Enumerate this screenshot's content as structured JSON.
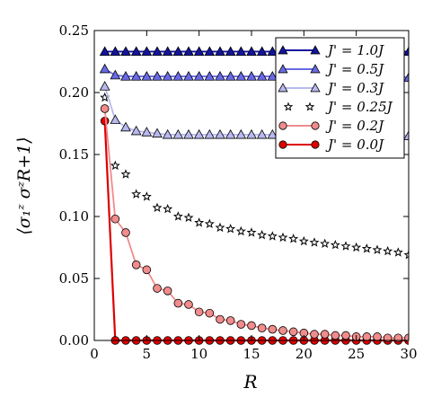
{
  "chart_data": {
    "type": "line",
    "title": "",
    "xlabel": "R",
    "ylabel": "⟨σ₁ᶻ σᶻR+1⟩",
    "xlim": [
      0,
      30
    ],
    "ylim": [
      0,
      0.25
    ],
    "x_ticks": [
      "0",
      "5",
      "10",
      "15",
      "20",
      "25",
      "30"
    ],
    "y_ticks": [
      "0.00",
      "0.05",
      "0.10",
      "0.15",
      "0.20",
      "0.25"
    ],
    "grid": false,
    "legend_position": "top-right",
    "series": [
      {
        "name": "J' = 1.0J",
        "color": "#1414a0",
        "marker": "triangle",
        "x": [
          1,
          2,
          3,
          4,
          5,
          6,
          7,
          8,
          9,
          10,
          11,
          12,
          13,
          14,
          15,
          16,
          17,
          18,
          19,
          20,
          21,
          22,
          23,
          24,
          25,
          26,
          27,
          28,
          29,
          30
        ],
        "values": [
          0.233,
          0.233,
          0.233,
          0.233,
          0.233,
          0.233,
          0.233,
          0.233,
          0.233,
          0.233,
          0.233,
          0.233,
          0.233,
          0.233,
          0.233,
          0.233,
          0.233,
          0.233,
          0.233,
          0.233,
          0.233,
          0.233,
          0.233,
          0.233,
          0.233,
          0.233,
          0.233,
          0.233,
          0.233,
          0.233
        ]
      },
      {
        "name": "J' = 0.5J",
        "color": "#6a6ae6",
        "marker": "triangle",
        "x": [
          1,
          2,
          3,
          4,
          5,
          6,
          7,
          8,
          9,
          10,
          11,
          12,
          13,
          14,
          15,
          16,
          17,
          18,
          19,
          20,
          21,
          22,
          23,
          24,
          25,
          26,
          27,
          28,
          29,
          30
        ],
        "values": [
          0.219,
          0.214,
          0.213,
          0.213,
          0.213,
          0.213,
          0.213,
          0.213,
          0.213,
          0.213,
          0.213,
          0.213,
          0.213,
          0.213,
          0.213,
          0.213,
          0.213,
          0.213,
          0.213,
          0.213,
          0.213,
          0.213,
          0.213,
          0.213,
          0.213,
          0.213,
          0.213,
          0.213,
          0.213,
          0.212
        ]
      },
      {
        "name": "J' = 0.3J",
        "color": "#b9b9f0",
        "marker": "triangle",
        "x": [
          1,
          2,
          3,
          4,
          5,
          6,
          7,
          8,
          9,
          10,
          11,
          12,
          13,
          14,
          15,
          16,
          17,
          18,
          19,
          20,
          21,
          22,
          23,
          24,
          25,
          26,
          27,
          28,
          29,
          30
        ],
        "values": [
          0.205,
          0.178,
          0.172,
          0.169,
          0.168,
          0.167,
          0.166,
          0.166,
          0.166,
          0.166,
          0.166,
          0.166,
          0.166,
          0.166,
          0.166,
          0.166,
          0.166,
          0.166,
          0.166,
          0.166,
          0.166,
          0.166,
          0.166,
          0.166,
          0.166,
          0.166,
          0.166,
          0.166,
          0.166,
          0.165
        ]
      },
      {
        "name": "J' = 0.25J",
        "color": "#000000",
        "marker": "star",
        "x": [
          1,
          2,
          3,
          4,
          5,
          6,
          7,
          8,
          9,
          10,
          11,
          12,
          13,
          14,
          15,
          16,
          17,
          18,
          19,
          20,
          21,
          22,
          23,
          24,
          25,
          26,
          27,
          28,
          29,
          30
        ],
        "values": [
          0.196,
          0.141,
          0.134,
          0.118,
          0.116,
          0.107,
          0.106,
          0.1,
          0.099,
          0.095,
          0.094,
          0.091,
          0.09,
          0.088,
          0.087,
          0.085,
          0.084,
          0.083,
          0.082,
          0.08,
          0.079,
          0.078,
          0.077,
          0.076,
          0.075,
          0.074,
          0.073,
          0.072,
          0.071,
          0.069
        ]
      },
      {
        "name": "J' = 0.2J",
        "color": "#f08c8c",
        "marker": "circle",
        "x": [
          1,
          2,
          3,
          4,
          5,
          6,
          7,
          8,
          9,
          10,
          11,
          12,
          13,
          14,
          15,
          16,
          17,
          18,
          19,
          20,
          21,
          22,
          23,
          24,
          25,
          26,
          27,
          28,
          29,
          30
        ],
        "values": [
          0.187,
          0.098,
          0.087,
          0.061,
          0.057,
          0.042,
          0.04,
          0.03,
          0.029,
          0.023,
          0.022,
          0.017,
          0.016,
          0.013,
          0.012,
          0.01,
          0.009,
          0.008,
          0.007,
          0.006,
          0.005,
          0.005,
          0.004,
          0.004,
          0.003,
          0.003,
          0.003,
          0.002,
          0.002,
          0.002
        ]
      },
      {
        "name": "J' = 0.0J",
        "color": "#dc0000",
        "marker": "circle",
        "x": [
          1,
          2,
          3,
          4,
          5,
          6,
          7,
          8,
          9,
          10,
          11,
          12,
          13,
          14,
          15,
          16,
          17,
          18,
          19,
          20,
          21,
          22,
          23,
          24,
          25,
          26,
          27,
          28,
          29,
          30
        ],
        "values": [
          0.177,
          0.0,
          0.0,
          0.0,
          0.0,
          0.0,
          0.0,
          0.0,
          0.0,
          0.0,
          0.0,
          0.0,
          0.0,
          0.0,
          0.0,
          0.0,
          0.0,
          0.0,
          0.0,
          0.0,
          0.0,
          0.0,
          0.0,
          0.0,
          0.0,
          0.0,
          0.0,
          0.0,
          0.0,
          0.0
        ]
      }
    ]
  }
}
